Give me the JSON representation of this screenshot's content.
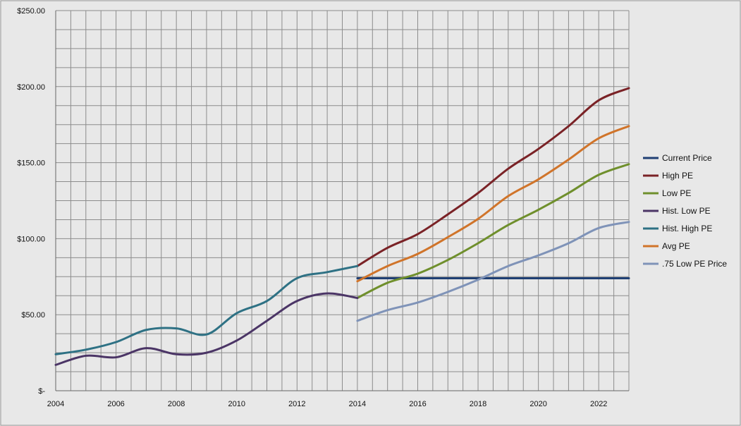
{
  "chart_data": {
    "type": "line",
    "title": "",
    "xlabel": "",
    "ylabel": "",
    "xlim": [
      2004,
      2023
    ],
    "ylim": [
      0,
      250
    ],
    "grid": true,
    "legend_position": "right",
    "x_ticks": [
      2004,
      2006,
      2008,
      2010,
      2012,
      2014,
      2016,
      2018,
      2020,
      2022
    ],
    "x_tick_labels": [
      "2004",
      "2006",
      "2008",
      "2010",
      "2012",
      "2014",
      "2016",
      "2018",
      "2020",
      "2022"
    ],
    "y_ticks": [
      0,
      50,
      100,
      150,
      200,
      250
    ],
    "y_tick_labels": [
      "$-",
      "$50.00",
      "$100.00",
      "$150.00",
      "$200.00",
      "$250.00"
    ],
    "colors": {
      "background": "#e8e8e8",
      "grid": "#8c8c8c",
      "axis": "#666666"
    },
    "series": [
      {
        "name": "Current Price",
        "color": "#1f3f73",
        "points": [
          [
            2014,
            74
          ],
          [
            2023,
            74
          ]
        ]
      },
      {
        "name": "High PE",
        "color": "#7a2226",
        "points": [
          [
            2014,
            82
          ],
          [
            2015,
            94
          ],
          [
            2016,
            103
          ],
          [
            2017,
            116
          ],
          [
            2018,
            130
          ],
          [
            2019,
            146
          ],
          [
            2020,
            159
          ],
          [
            2021,
            174
          ],
          [
            2022,
            191
          ],
          [
            2023,
            199
          ]
        ]
      },
      {
        "name": "Low PE",
        "color": "#6f8f2c",
        "points": [
          [
            2014,
            61
          ],
          [
            2015,
            71
          ],
          [
            2016,
            77
          ],
          [
            2017,
            86
          ],
          [
            2018,
            97
          ],
          [
            2019,
            109
          ],
          [
            2020,
            119
          ],
          [
            2021,
            130
          ],
          [
            2022,
            142
          ],
          [
            2023,
            149
          ]
        ]
      },
      {
        "name": "Hist. Low PE",
        "color": "#4b3566",
        "points": [
          [
            2004,
            17
          ],
          [
            2005,
            23
          ],
          [
            2006,
            22
          ],
          [
            2007,
            28
          ],
          [
            2008,
            24
          ],
          [
            2009,
            25
          ],
          [
            2010,
            33
          ],
          [
            2011,
            46
          ],
          [
            2012,
            59
          ],
          [
            2013,
            64
          ],
          [
            2014,
            61
          ]
        ]
      },
      {
        "name": "Hist. High PE",
        "color": "#2e7184",
        "points": [
          [
            2004,
            24
          ],
          [
            2005,
            27
          ],
          [
            2006,
            32
          ],
          [
            2007,
            40
          ],
          [
            2008,
            41
          ],
          [
            2009,
            37
          ],
          [
            2010,
            51
          ],
          [
            2011,
            59
          ],
          [
            2012,
            74
          ],
          [
            2013,
            78
          ],
          [
            2014,
            82
          ]
        ]
      },
      {
        "name": "Avg PE",
        "color": "#d0742a",
        "points": [
          [
            2014,
            72
          ],
          [
            2015,
            82
          ],
          [
            2016,
            90
          ],
          [
            2017,
            101
          ],
          [
            2018,
            113
          ],
          [
            2019,
            128
          ],
          [
            2020,
            139
          ],
          [
            2021,
            152
          ],
          [
            2022,
            166
          ],
          [
            2023,
            174
          ]
        ]
      },
      {
        "name": ".75 Low PE Price",
        "color": "#7f93b8",
        "points": [
          [
            2014,
            46
          ],
          [
            2015,
            53
          ],
          [
            2016,
            58
          ],
          [
            2017,
            65
          ],
          [
            2018,
            73
          ],
          [
            2019,
            82
          ],
          [
            2020,
            89
          ],
          [
            2021,
            97
          ],
          [
            2022,
            107
          ],
          [
            2023,
            111
          ]
        ]
      }
    ]
  }
}
